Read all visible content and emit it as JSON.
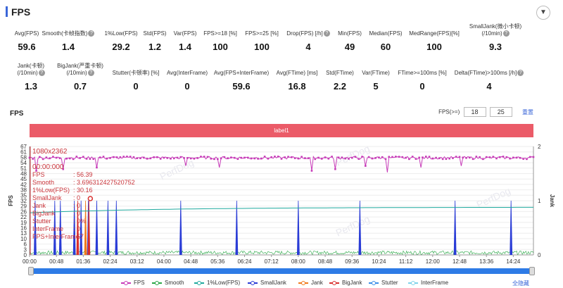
{
  "header": {
    "title": "FPS",
    "toggle_icon": "chevron-down"
  },
  "stats": [
    {
      "label": "Avg(FPS)",
      "value": "59.6",
      "help": false
    },
    {
      "label": "Smooth(卡帧指数)",
      "value": "1.4",
      "help": true
    },
    {
      "label": "1%Low(FPS)",
      "value": "29.2",
      "help": false
    },
    {
      "label": "Std(FPS)",
      "value": "1.2",
      "help": false
    },
    {
      "label": "Var(FPS)",
      "value": "1.4",
      "help": false
    },
    {
      "label": "FPS>=18 [%]",
      "value": "100",
      "help": false
    },
    {
      "label": "FPS>=25 [%]",
      "value": "100",
      "help": false
    },
    {
      "label": "Drop(FPS) [/h]",
      "value": "4",
      "help": true
    },
    {
      "label": "Min(FPS)",
      "value": "49",
      "help": false
    },
    {
      "label": "Median(FPS)",
      "value": "60",
      "help": false
    },
    {
      "label": "MedRange(FPS)[%]",
      "value": "100",
      "help": false
    },
    {
      "label": "SmallJank(微小卡顿)",
      "label2": "(/10min)",
      "value": "9.3",
      "help": true
    },
    {
      "label": "Jank(卡顿)",
      "label2": "(/10min)",
      "value": "1.3",
      "help": true
    },
    {
      "label": "BigJank(严重卡顿)",
      "label2": "(/10min)",
      "value": "0.7",
      "help": true
    },
    {
      "label": "Stutter(卡顿率) [%]",
      "value": "0",
      "help": false
    },
    {
      "label": "Avg(InterFrame)",
      "value": "0",
      "help": false
    },
    {
      "label": "Avg(FPS+InterFrame)",
      "value": "59.6",
      "help": false
    },
    {
      "label": "Avg(FTime) [ms]",
      "value": "16.8",
      "help": false
    },
    {
      "label": "Std(FTime)",
      "value": "2.2",
      "help": false
    },
    {
      "label": "Var(FTime)",
      "value": "5",
      "help": false
    },
    {
      "label": "FTime>=100ms [%]",
      "value": "0",
      "help": false
    },
    {
      "label": "Delta(FTime)>100ms [/h]",
      "value": "4",
      "help": true
    }
  ],
  "chart_section": {
    "title": "FPS",
    "fps_filter_label": "FPS(>=)",
    "fps_filter_values": [
      "18",
      "25"
    ],
    "reset_label": "重置",
    "segment_label": "label1",
    "watermark": "PerfDog",
    "hide_all_label": "全隐藏"
  },
  "tooltip": {
    "resolution": "1080x2362",
    "time": "00:00:000",
    "rows": [
      {
        "key": "FPS",
        "value": ": 56.39"
      },
      {
        "key": "Smooth",
        "value": ": 3.696312427520752"
      },
      {
        "key": "1%Low(FPS)",
        "value": ": 30.16"
      },
      {
        "key": "SmallJank",
        "value": ": 0"
      },
      {
        "key": "Jank",
        "value": ": 0"
      },
      {
        "key": "BigJank",
        "value": ": 0"
      },
      {
        "key": "Stutter",
        "value": ": 0%"
      },
      {
        "key": "InterFrame",
        "value": ": 0"
      },
      {
        "key": "FPS+InterFrame",
        "value": ": 57"
      }
    ]
  },
  "chart_data": {
    "type": "line",
    "y_left_label": "FPS",
    "y_right_label": "Jank",
    "y_left_ticks": [
      "67",
      "61",
      "58",
      "54",
      "51",
      "48",
      "45",
      "42",
      "38",
      "35",
      "32",
      "29",
      "26",
      "22",
      "19",
      "16",
      "13",
      "10",
      "6",
      "3",
      "0"
    ],
    "y_left_range": [
      0,
      67
    ],
    "y_right_ticks": [
      "2",
      "1",
      "0"
    ],
    "y_right_range": [
      0,
      2
    ],
    "x_ticks": [
      "00:00",
      "00:48",
      "01:36",
      "02:24",
      "03:12",
      "04:00",
      "04:48",
      "05:36",
      "06:24",
      "07:12",
      "08:00",
      "08:48",
      "09:36",
      "10:24",
      "11:12",
      "12:00",
      "12:48",
      "13:36",
      "14:24"
    ],
    "x_range_seconds": [
      0,
      900
    ],
    "series": [
      {
        "name": "FPS",
        "color": "#c73bb8",
        "marker": true,
        "approx_value": 60,
        "dips": [
          [
            12,
            52
          ],
          [
            60,
            53
          ],
          [
            120,
            54
          ],
          [
            280,
            55
          ],
          [
            340,
            54
          ],
          [
            505,
            52
          ],
          [
            545,
            53
          ],
          [
            600,
            55
          ],
          [
            640,
            51
          ],
          [
            700,
            54
          ],
          [
            770,
            55
          ]
        ]
      },
      {
        "name": "Smooth",
        "color": "#28a745",
        "approx_value": 1.4
      },
      {
        "name": "1%Low(FPS)",
        "color": "#1fa99e",
        "start": 26,
        "end": 29.5
      },
      {
        "name": "SmallJank",
        "color": "#2a3cd6",
        "events_seconds": [
          10,
          45,
          55,
          80,
          92,
          105,
          120,
          140,
          155,
          270,
          370,
          480,
          590,
          760,
          860
        ],
        "event_value": 1
      },
      {
        "name": "Jank",
        "color": "#f07a1c",
        "events_seconds": [
          100
        ],
        "event_value": 1
      },
      {
        "name": "BigJank",
        "color": "#d9302e",
        "events_seconds": [
          86,
          106
        ],
        "event_value": 1
      },
      {
        "name": "Stutter",
        "color": "#3b8ee8"
      },
      {
        "name": "InterFrame",
        "color": "#7fd3ea"
      }
    ]
  }
}
